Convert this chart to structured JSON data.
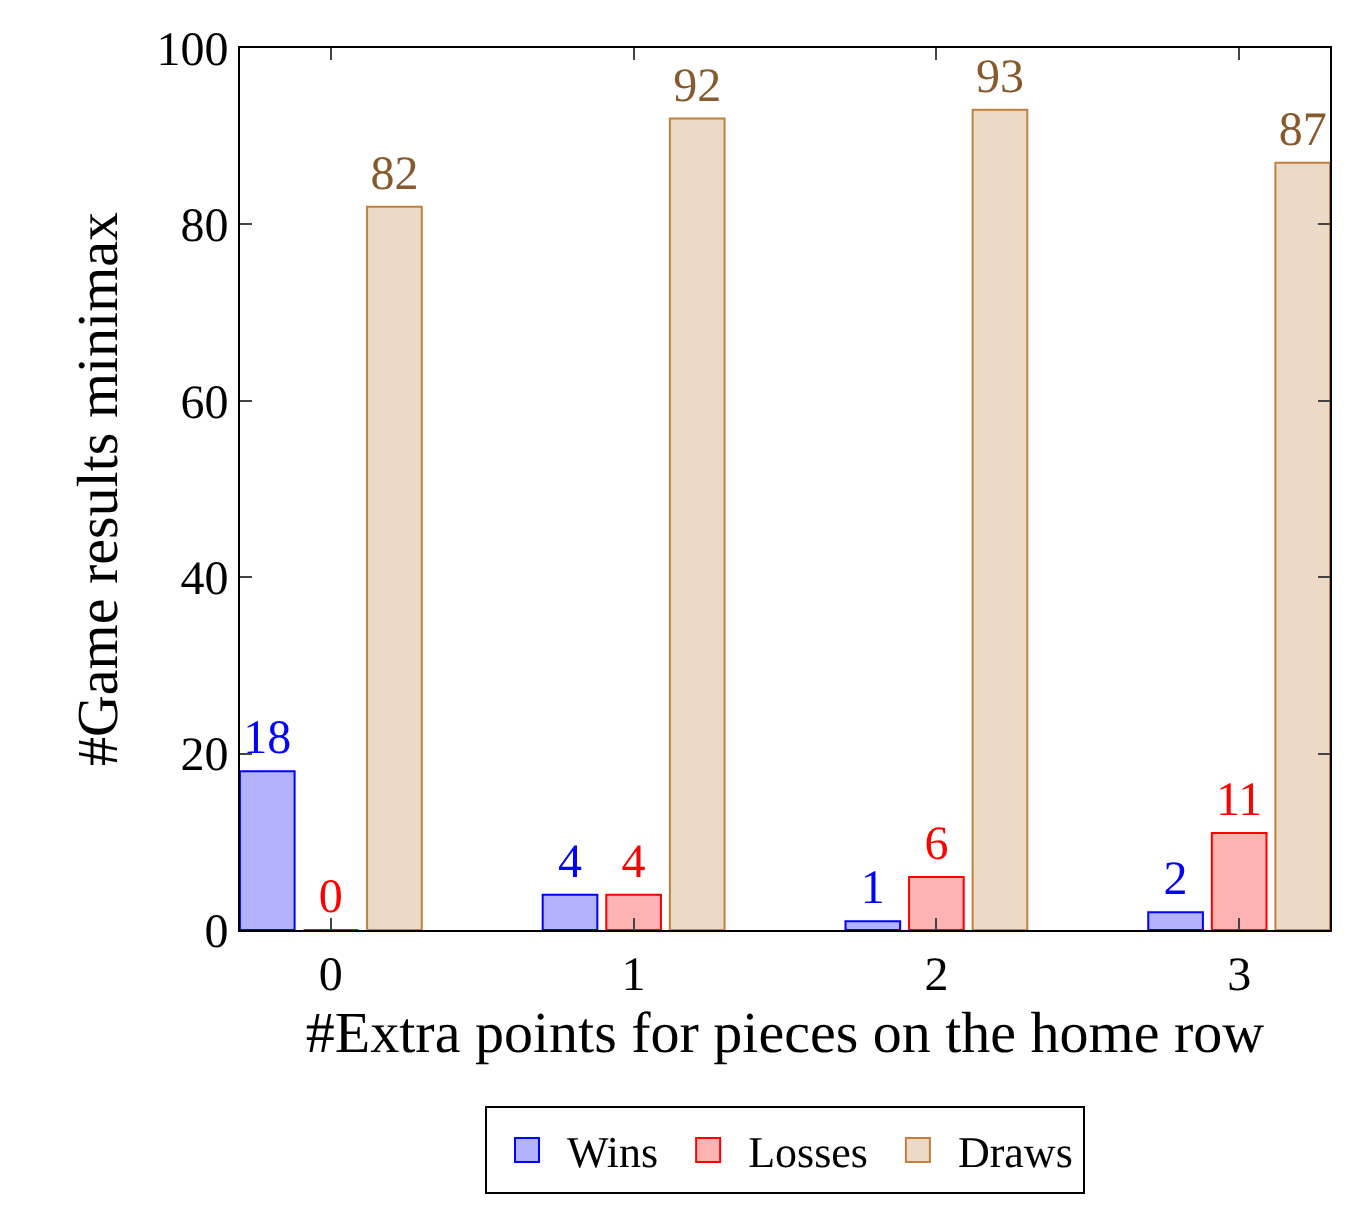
{
  "chart_data": {
    "type": "bar",
    "xlabel": "#Extra points for pieces on the home row",
    "ylabel": "#Game results minimax",
    "categories": [
      "0",
      "1",
      "2",
      "3"
    ],
    "series": [
      {
        "name": "Wins",
        "color": "#0000ff",
        "values": [
          18,
          4,
          1,
          2
        ]
      },
      {
        "name": "Losses",
        "color": "#ff0000",
        "values": [
          0,
          4,
          6,
          11
        ]
      },
      {
        "name": "Draws",
        "color": "#bf8040",
        "values": [
          82,
          92,
          93,
          87
        ]
      }
    ],
    "ylim": [
      0,
      100
    ],
    "yticks": [
      0,
      20,
      40,
      60,
      80,
      100
    ],
    "data_labels": true,
    "legend": "bottom"
  }
}
